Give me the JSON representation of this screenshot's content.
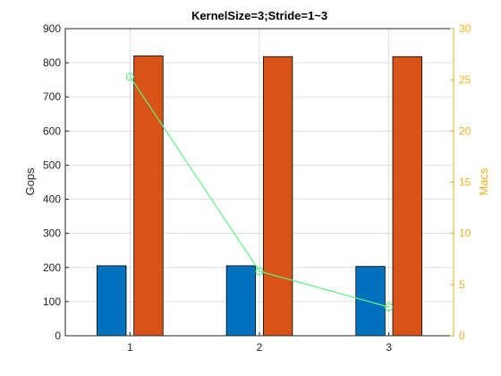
{
  "chart_data": {
    "type": "bar",
    "title": "KernelSize=3;Stride=1~3",
    "xlabel": "",
    "categories": [
      "1",
      "2",
      "3"
    ],
    "left_axis": {
      "label": "Gops",
      "ylim": [
        0,
        900
      ],
      "ticks": [
        "0",
        "100",
        "200",
        "300",
        "400",
        "500",
        "600",
        "700",
        "800",
        "900"
      ],
      "color": "#000000"
    },
    "right_axis": {
      "label": "Macs",
      "ylim": [
        0,
        30
      ],
      "ticks": [
        "0",
        "5",
        "10",
        "15",
        "20",
        "25",
        "30"
      ],
      "color": "#EDB120"
    },
    "series": [
      {
        "type": "bar",
        "axis": "left",
        "values": [
          205,
          205,
          203
        ],
        "color": "#0072BD"
      },
      {
        "type": "bar",
        "axis": "left",
        "values": [
          820,
          818,
          818
        ],
        "color": "#D95319"
      },
      {
        "type": "line",
        "axis": "right",
        "values": [
          25.3,
          6.3,
          2.8
        ],
        "color": "#5CF281",
        "marker": "circle"
      }
    ],
    "grid": true
  }
}
